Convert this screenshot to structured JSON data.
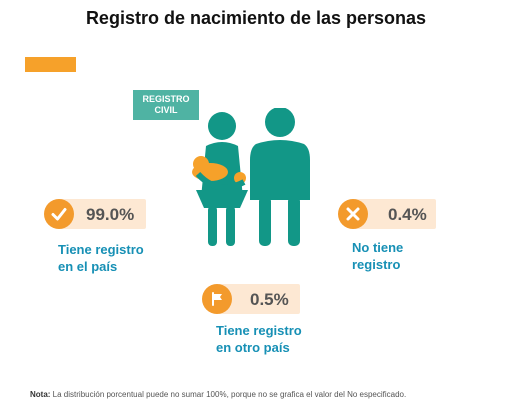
{
  "title": "Registro de nacimiento de las personas",
  "badge": {
    "line1": "REGISTRO",
    "line2": "CIVIL"
  },
  "stats": [
    {
      "value": "99.0%",
      "label_line1": "Tiene registro",
      "label_line2": "en el país",
      "icon": "checkmark-icon"
    },
    {
      "value": "0.4%",
      "label_line1": "No tiene",
      "label_line2": "registro",
      "icon": "cross-icon"
    },
    {
      "value": "0.5%",
      "label_line1": "Tiene registro",
      "label_line2": "en otro país",
      "icon": "flag-icon"
    }
  ],
  "note": {
    "prefix": "Nota:",
    "text": " La distribución porcentual puede no sumar 100%, porque no se grafica el valor del No especificado."
  },
  "colors": {
    "accent_orange": "#f39a2c",
    "teal": "#129787",
    "badge_teal": "#4fb3a3",
    "label_blue": "#1790b5",
    "band_peach": "#fde8d3"
  }
}
